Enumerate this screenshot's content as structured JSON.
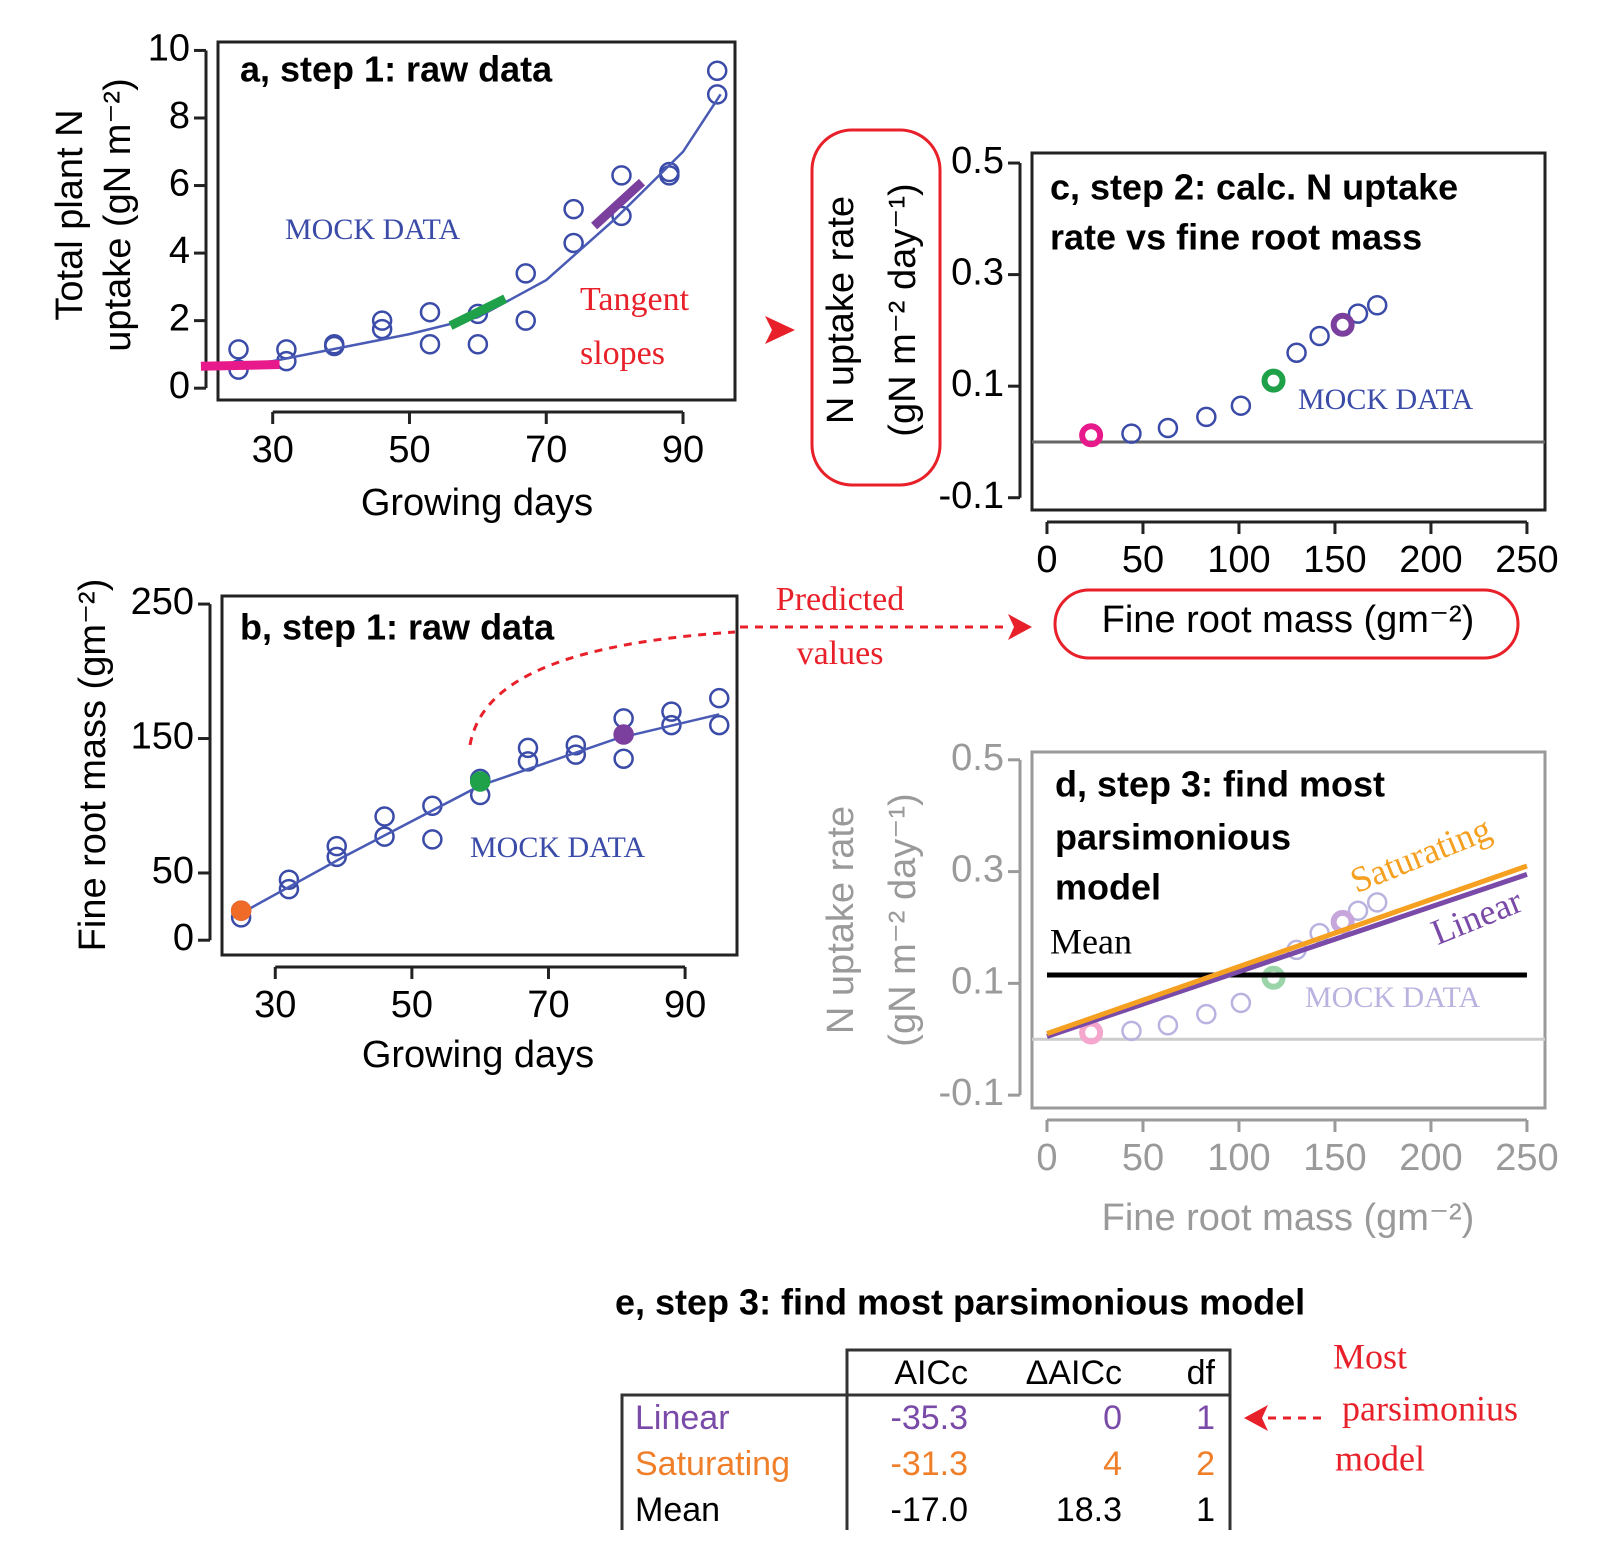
{
  "chart_data": [
    {
      "type": "scatter",
      "title": [
        "a, step 1: raw data"
      ],
      "watermark": "MOCK DATA",
      "annotation": [
        "Tangent",
        "slopes"
      ],
      "x_label": "Growing days",
      "y_label": [
        "Total plant N",
        "uptake (gN m⁻²)"
      ],
      "xlim": [
        22,
        97.6
      ],
      "ylim": [
        -0.35,
        10.25
      ],
      "xticks": [
        30,
        50,
        70,
        90
      ],
      "yticks": [
        0,
        2,
        4,
        6,
        8,
        10
      ],
      "axis_color": "#222",
      "text_color": "#000",
      "series": [
        {
          "kind": "points",
          "color": "#3b4ba8",
          "x": [
            25,
            25,
            32,
            32,
            39,
            39,
            46,
            46,
            53,
            53,
            60,
            60,
            67,
            67,
            74,
            74,
            81,
            81,
            88,
            88,
            95,
            95
          ],
          "y": [
            1.15,
            0.55,
            1.15,
            0.8,
            1.3,
            1.25,
            2.0,
            1.75,
            2.25,
            1.3,
            2.2,
            1.3,
            3.4,
            2.0,
            5.3,
            4.3,
            6.3,
            5.1,
            6.4,
            6.3,
            9.4,
            8.7
          ]
        },
        {
          "kind": "curve",
          "color": "#4a5bb5",
          "x": [
            22,
            30,
            40,
            50,
            60,
            70,
            80,
            90,
            95.5
          ],
          "y": [
            0.6,
            0.8,
            1.2,
            1.6,
            2.1,
            3.2,
            5.0,
            7.0,
            8.7
          ]
        },
        {
          "kind": "tangent",
          "color": "#e8198b",
          "x": [
            19.5,
            31
          ],
          "y": [
            0.65,
            0.7
          ]
        },
        {
          "kind": "tangent",
          "color": "#1fa14a",
          "x": [
            56,
            64
          ],
          "y": [
            1.85,
            2.65
          ]
        },
        {
          "kind": "tangent",
          "color": "#7b3f9e",
          "x": [
            77,
            84
          ],
          "y": [
            4.8,
            6.1
          ]
        }
      ]
    },
    {
      "type": "scatter",
      "title": [
        "b, step 1: raw data"
      ],
      "watermark": "MOCK DATA",
      "annotation": [
        "Predicted",
        "values"
      ],
      "x_label": "Growing days",
      "y_label": [
        "Fine root mass (gm⁻²)"
      ],
      "xlim": [
        22.2,
        97.6
      ],
      "ylim": [
        -11,
        256
      ],
      "xticks": [
        30,
        50,
        70,
        90
      ],
      "yticks": [
        0,
        50,
        150,
        250
      ],
      "axis_color": "#222",
      "text_color": "#000",
      "series": [
        {
          "kind": "points",
          "color": "#3b4ba8",
          "x": [
            25,
            25,
            32,
            32,
            39,
            39,
            46,
            46,
            53,
            53,
            60,
            60,
            67,
            67,
            74,
            74,
            81,
            81,
            88,
            88,
            95,
            95
          ],
          "y": [
            22,
            17,
            45,
            38,
            70,
            62,
            92,
            77,
            100,
            75,
            120,
            108,
            143,
            133,
            145,
            138,
            165,
            135,
            170,
            160,
            180,
            160
          ]
        },
        {
          "kind": "curve",
          "color": "#4a5bb5",
          "x": [
            25,
            40,
            60,
            80,
            95
          ],
          "y": [
            20,
            62,
            115,
            150,
            168
          ]
        },
        {
          "kind": "filled-points",
          "color": "#f06a28",
          "x": [
            25
          ],
          "y": [
            22
          ]
        },
        {
          "kind": "filled-points",
          "color": "#1fa14a",
          "x": [
            60
          ],
          "y": [
            118
          ]
        },
        {
          "kind": "filled-points",
          "color": "#7b3f9e",
          "x": [
            81
          ],
          "y": [
            153
          ]
        }
      ]
    },
    {
      "type": "scatter",
      "title": [
        "c, step 2: calc. N uptake",
        "rate vs fine root mass"
      ],
      "watermark": "MOCK DATA",
      "x_label": "Fine root mass (gm⁻²)",
      "y_label": [
        "N uptake rate",
        "(gN m⁻² day⁻¹)"
      ],
      "xlim": [
        -7.8,
        259.4
      ],
      "ylim": [
        -0.122,
        0.518
      ],
      "xticks": [
        0,
        50,
        100,
        150,
        200,
        250
      ],
      "yticks": [
        -0.1,
        0.1,
        0.3,
        0.5
      ],
      "axis_color": "#222",
      "text_color": "#000",
      "reference_line": {
        "value": 0,
        "color": "#666"
      },
      "series": [
        {
          "kind": "points",
          "color": "#3b4ba8",
          "x": [
            44,
            63,
            83,
            101,
            130,
            142,
            162,
            172
          ],
          "y": [
            0.015,
            0.025,
            0.045,
            0.065,
            0.16,
            0.19,
            0.23,
            0.245
          ]
        },
        {
          "kind": "bold-points",
          "color": "#e8198b",
          "x": [
            23
          ],
          "y": [
            0.012
          ]
        },
        {
          "kind": "bold-points",
          "color": "#1fa14a",
          "x": [
            118
          ],
          "y": [
            0.11
          ]
        },
        {
          "kind": "bold-points",
          "color": "#7b3f9e",
          "x": [
            154
          ],
          "y": [
            0.21
          ]
        }
      ]
    },
    {
      "type": "scatter",
      "title": [
        "d, step 3: find most",
        "parsimonious",
        "model"
      ],
      "watermark": "MOCK DATA",
      "x_label": "Fine root mass (gm⁻²)",
      "y_label": [
        "N uptake rate",
        "(gN m⁻² day⁻¹)"
      ],
      "xlim": [
        -7.8,
        259.4
      ],
      "ylim": [
        -0.123,
        0.514
      ],
      "xticks": [
        0,
        50,
        100,
        150,
        200,
        250
      ],
      "yticks": [
        -0.1,
        0.1,
        0.3,
        0.5
      ],
      "axis_color": "#9a9a9a",
      "text_color": "#9a9a9a",
      "reference_line": {
        "value": 0,
        "color": "#ccc"
      },
      "series": [
        {
          "kind": "points",
          "color": "#b9b3e0",
          "x": [
            44,
            63,
            83,
            101,
            130,
            142,
            162,
            172
          ],
          "y": [
            0.015,
            0.025,
            0.045,
            0.065,
            0.16,
            0.19,
            0.23,
            0.245
          ]
        },
        {
          "kind": "bold-points",
          "color": "#f4a6cc",
          "x": [
            23
          ],
          "y": [
            0.012
          ]
        },
        {
          "kind": "bold-points",
          "color": "#9ad4a8",
          "x": [
            118
          ],
          "y": [
            0.11
          ]
        },
        {
          "kind": "bold-points",
          "color": "#c7a6dc",
          "x": [
            154
          ],
          "y": [
            0.21
          ]
        },
        {
          "kind": "line",
          "name": "Mean",
          "color": "#000",
          "x": [
            0,
            250
          ],
          "y": [
            0.115,
            0.115
          ]
        },
        {
          "kind": "line",
          "name": "Linear",
          "color": "#7a4aa8",
          "x": [
            0,
            250
          ],
          "y": [
            0.005,
            0.295
          ]
        },
        {
          "kind": "line",
          "name": "Saturating",
          "color": "#f5a020",
          "x": [
            0,
            250
          ],
          "y": [
            0.01,
            0.31
          ]
        }
      ]
    }
  ],
  "table": {
    "title": "e, step 3: find most parsimonious model",
    "columns": [
      "AICc",
      "ΔAICc",
      "df"
    ],
    "rows": [
      [
        "Linear",
        "-35.3",
        "0",
        "1"
      ],
      [
        "Saturating",
        "-31.3",
        "4",
        "2"
      ],
      [
        "Mean",
        "-17.0",
        "18.3",
        "1"
      ]
    ],
    "row_colors": [
      "#7a4aa8",
      "#f07f2a",
      "#000"
    ],
    "note": [
      "Most",
      "parsimonius",
      "model"
    ]
  }
}
